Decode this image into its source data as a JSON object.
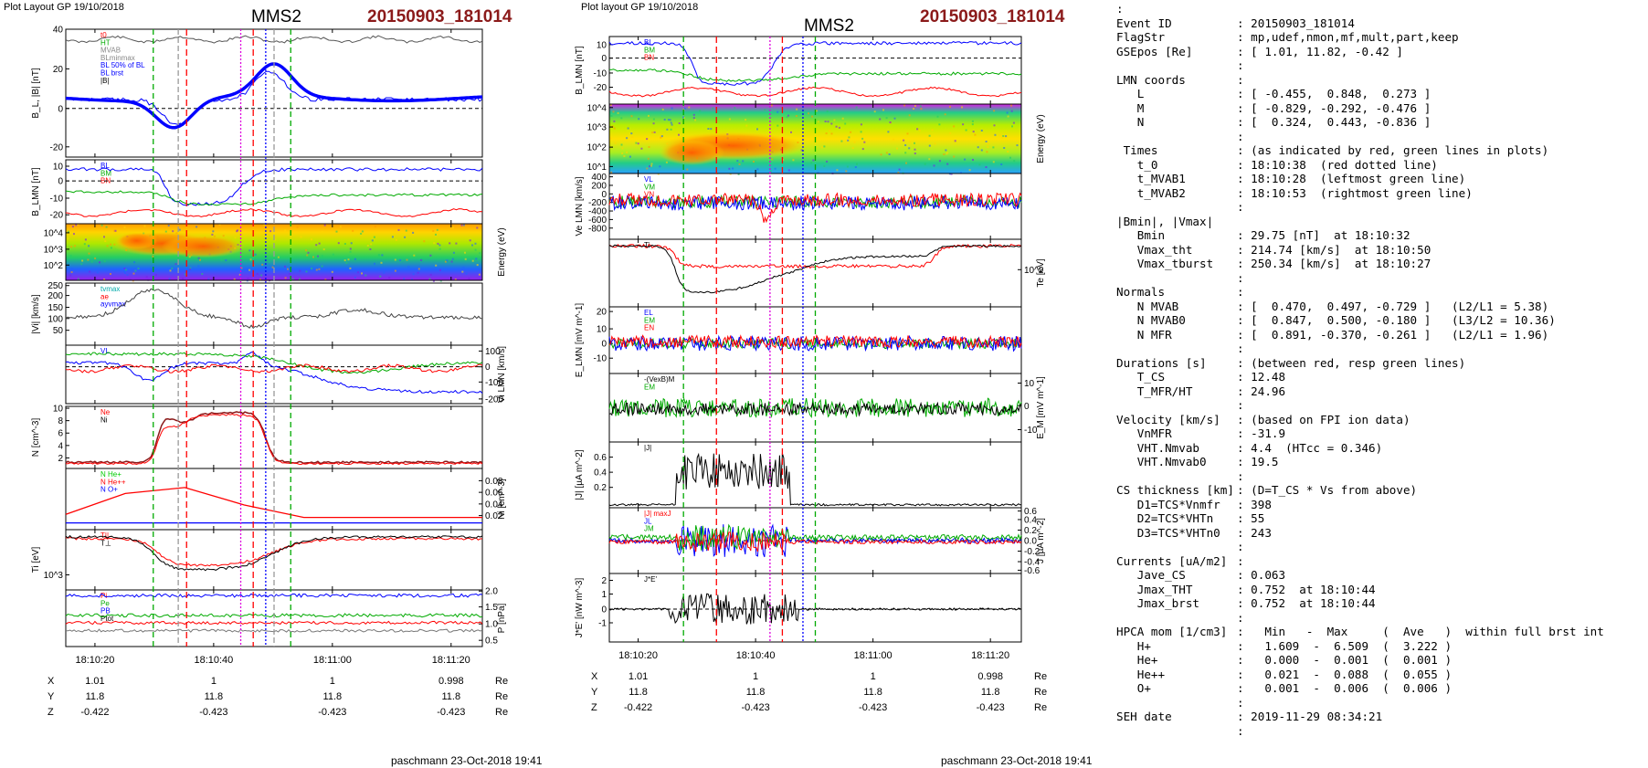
{
  "header": {
    "left_label": "Plot Layout GP 19/10/2018",
    "right_label": "Plot layout GP 19/10/2018",
    "spacecraft": "MMS2",
    "event": "20150903_181014"
  },
  "footer": {
    "credit": "paschmann 23-Oct-2018 19:41"
  },
  "colors": {
    "event_red": "#8b1a1a",
    "trace_black": "#000000",
    "trace_blue": "#0000ff",
    "trace_green": "#00cc00",
    "trace_red": "#ff0000",
    "marker_green": "#00aa00",
    "marker_red": "#ff0000",
    "marker_magenta": "#dd00dd",
    "marker_blue": "#0000ff"
  },
  "chart_data": [
    {
      "type": "line",
      "title": "MMS2 20150903_181014 (left figure)",
      "x_tick_labels": [
        "18:10:20",
        "18:10:40",
        "18:11:00",
        "18:11:20"
      ],
      "panels": [
        {
          "ylabel": "B_L, |B| [nT]",
          "ylim": [
            -25,
            40
          ],
          "ticks": [
            "40",
            "20",
            "0",
            "-20"
          ],
          "legend": [
            "t0",
            "HT",
            "MVAB",
            "BLminmax",
            "BL 50% of BL",
            "BL brst",
            "|B|"
          ]
        },
        {
          "ylabel": "B_LMN [nT]",
          "ylim": [
            -25,
            15
          ],
          "ticks": [
            "10",
            "0",
            "-10",
            "-20"
          ],
          "legend": [
            "BL",
            "BM",
            "BN"
          ]
        },
        {
          "type": "heatmap",
          "ylabel": "Energy (eV)",
          "ticks": [
            "10^4",
            "10^3",
            "10^2"
          ]
        },
        {
          "ylabel": "|Vi| [km/s]",
          "ylim": [
            0,
            260
          ],
          "ticks": [
            "250",
            "200",
            "150",
            "100",
            "50"
          ],
          "legend": [
            "tvmax",
            "ae",
            "ayvmax"
          ]
        },
        {
          "ylabel": "Vi LMN [km/s]",
          "ticks_right": [
            "100",
            "0",
            "-100",
            "-200"
          ],
          "legend": [
            "VL"
          ]
        },
        {
          "ylabel": "N [cm^-3]",
          "ylim": [
            0,
            10
          ],
          "ticks": [
            "10",
            "8",
            "6",
            "4",
            "2"
          ],
          "legend": [
            "Ne",
            "Ni"
          ]
        },
        {
          "ylabel": "Ni [cm^-3]",
          "ticks_right": [
            "0.08",
            "0.06",
            "0.04",
            "0.02"
          ],
          "legend": [
            "N He+",
            "N He++",
            "N O+"
          ]
        },
        {
          "ylabel": "Ti [eV]",
          "ticks": [
            "10^3"
          ],
          "legend": [
            "T||",
            "T⊥"
          ]
        },
        {
          "ylabel": "P [nPa]",
          "ticks_right": [
            "2.0",
            "1.5",
            "1.0",
            "0.5"
          ],
          "legend": [
            "Pi",
            "Pe",
            "PB",
            "Ptot"
          ]
        }
      ],
      "position": {
        "X": [
          "1.01",
          "1",
          "1",
          "0.998"
        ],
        "Y": [
          "11.8",
          "11.8",
          "11.8",
          "11.8"
        ],
        "Z": [
          "-0.422",
          "-0.423",
          "-0.423",
          "-0.423"
        ],
        "unit": "Re"
      }
    },
    {
      "type": "line",
      "title": "MMS2 20150903_181014 (right figure)",
      "x_tick_labels": [
        "18:10:20",
        "18:10:40",
        "18:11:00",
        "18:11:20"
      ],
      "panels": [
        {
          "ylabel": "B_LMN [nT]",
          "ticks": [
            "10",
            "0",
            "-10",
            "-20"
          ],
          "legend": [
            "BL",
            "BM",
            "BN"
          ]
        },
        {
          "type": "heatmap",
          "ylabel": "Energy (eV)",
          "ticks": [
            "10^4",
            "10^3",
            "10^2",
            "10^1"
          ]
        },
        {
          "ylabel": "Ve LMN [km/s]",
          "ticks": [
            "400",
            "200",
            "0",
            "-200",
            "-400",
            "-600",
            "-800"
          ],
          "legend": [
            "VL",
            "VM",
            "VN"
          ]
        },
        {
          "ylabel": "Te [eV]",
          "ticks_right": [
            "10^2"
          ],
          "legend": [
            "Ti"
          ]
        },
        {
          "ylabel": "E_LMN [mV m^-1]",
          "ticks": [
            "20",
            "10",
            "0",
            "-10"
          ],
          "legend": [
            "EL",
            "EM",
            "EN"
          ]
        },
        {
          "ylabel": "E_M [mV m^-1]",
          "ticks_right": [
            "10",
            "0",
            "-10"
          ],
          "legend": [
            "-(VexB)M",
            "EM"
          ]
        },
        {
          "ylabel": "|J| [µA m^-2]",
          "ticks": [
            "0.6",
            "0.4",
            "0.2"
          ],
          "legend": [
            "|J|"
          ]
        },
        {
          "ylabel": "J [µA m^-2]",
          "ticks_right": [
            "0.6",
            "0.4",
            "0.2",
            "0.0",
            "-0.2",
            "-0.4",
            "-0.6"
          ],
          "legend": [
            "|J| maxJ",
            "JL",
            "JM"
          ]
        },
        {
          "ylabel": "J*E' [nW m^-3]",
          "ticks": [
            "2",
            "1",
            "0",
            "-1"
          ],
          "legend": [
            "J*E'"
          ]
        }
      ],
      "position": {
        "X": [
          "1.01",
          "1",
          "1",
          "0.998"
        ],
        "Y": [
          "11.8",
          "11.8",
          "11.8",
          "11.8"
        ],
        "Z": [
          "-0.422",
          "-0.423",
          "-0.423",
          "-0.423"
        ],
        "unit": "Re"
      }
    }
  ],
  "info": {
    "lines": [
      {
        "k": ":",
        "v": ""
      },
      {
        "k": "Event ID",
        "v": ": 20150903_181014"
      },
      {
        "k": "FlagStr",
        "v": ": mp,udef,nmon,mf,mult,part,keep"
      },
      {
        "k": "GSEpos [Re]",
        "v": ": [ 1.01, 11.82, -0.42 ]"
      },
      {
        "k": "",
        "v": ":"
      },
      {
        "k": "LMN coords",
        "v": ":"
      },
      {
        "k": "   L",
        "v": ": [ -0.455,  0.848,  0.273 ]"
      },
      {
        "k": "   M",
        "v": ": [ -0.829, -0.292, -0.476 ]"
      },
      {
        "k": "   N",
        "v": ": [  0.324,  0.443, -0.836 ]"
      },
      {
        "k": "",
        "v": ":"
      },
      {
        "k": " Times",
        "v": ": (as indicated by red, green lines in plots)"
      },
      {
        "k": "   t_0",
        "v": ": 18:10:38  (red dotted line)"
      },
      {
        "k": "   t_MVAB1",
        "v": ": 18:10:28  (leftmost green line)"
      },
      {
        "k": "   t_MVAB2",
        "v": ": 18:10:53  (rightmost green line)"
      },
      {
        "k": "",
        "v": ":"
      },
      {
        "k": "|Bmin|, |Vmax|",
        "v": ""
      },
      {
        "k": "   Bmin",
        "v": ": 29.75 [nT]  at 18:10:32"
      },
      {
        "k": "   Vmax_tht",
        "v": ": 214.74 [km/s]  at 18:10:50"
      },
      {
        "k": "   Vmax_tburst",
        "v": ": 250.34 [km/s]  at 18:10:27"
      },
      {
        "k": "",
        "v": ":"
      },
      {
        "k": "Normals",
        "v": ":"
      },
      {
        "k": "   N MVAB",
        "v": ": [  0.470,  0.497, -0.729 ]   (L2/L1 = 5.38)"
      },
      {
        "k": "   N MVAB0",
        "v": ": [  0.847,  0.500, -0.180 ]   (L3/L2 = 10.36)"
      },
      {
        "k": "   N MFR",
        "v": ": [  0.891, -0.370, -0.261 ]   (L2/L1 = 1.96)"
      },
      {
        "k": "",
        "v": ":"
      },
      {
        "k": "Durations [s]",
        "v": ": (between red, resp green lines)"
      },
      {
        "k": "   T_CS",
        "v": ": 12.48"
      },
      {
        "k": "   T_MFR/HT",
        "v": ": 24.96"
      },
      {
        "k": "",
        "v": ":"
      },
      {
        "k": "Velocity [km/s]",
        "v": ": (based on FPI ion data)"
      },
      {
        "k": "   VnMFR",
        "v": ": -31.9"
      },
      {
        "k": "   VHT.Nmvab",
        "v": ": 4.4  (HTcc = 0.346)"
      },
      {
        "k": "   VHT.Nmvab0",
        "v": ": 19.5"
      },
      {
        "k": "",
        "v": ":"
      },
      {
        "k": "CS thickness [km]",
        "v": ": (D=T_CS * Vs from above)"
      },
      {
        "k": "   D1=TCS*Vnmfr",
        "v": ": 398"
      },
      {
        "k": "   D2=TCS*VHTn",
        "v": ": 55"
      },
      {
        "k": "   D3=TCS*VHTn0",
        "v": ": 243"
      },
      {
        "k": "",
        "v": ":"
      },
      {
        "k": "Currents [uA/m2]",
        "v": ":"
      },
      {
        "k": "   Jave_CS",
        "v": ": 0.063"
      },
      {
        "k": "   Jmax_THT",
        "v": ": 0.752  at 18:10:44"
      },
      {
        "k": "   Jmax_brst",
        "v": ": 0.752  at 18:10:44"
      },
      {
        "k": "",
        "v": ":"
      },
      {
        "k": "HPCA mom [1/cm3]",
        "v": ":   Min   -  Max     (  Ave   )  within full brst int"
      },
      {
        "k": "   H+",
        "v": ":   1.609  -  6.509  (  3.222 )"
      },
      {
        "k": "   He+",
        "v": ":   0.000  -  0.001  (  0.001 )"
      },
      {
        "k": "   He++",
        "v": ":   0.021  -  0.088  (  0.055 )"
      },
      {
        "k": "   O+",
        "v": ":   0.001  -  0.006  (  0.006 )"
      },
      {
        "k": "",
        "v": ":"
      },
      {
        "k": "SEH date",
        "v": ": 2019-11-29 08:34:21"
      },
      {
        "k": "",
        "v": ":"
      }
    ]
  }
}
